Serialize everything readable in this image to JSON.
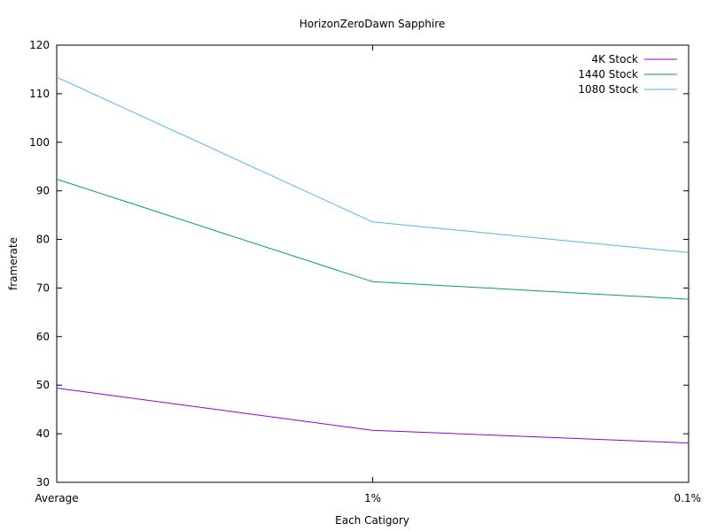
{
  "chart_data": {
    "type": "line",
    "title": "HorizonZeroDawn Sapphire",
    "xlabel": "Each Catigory",
    "ylabel": "framerate",
    "categories": [
      "Average",
      "1%",
      "0.1%"
    ],
    "ylim": [
      30,
      120
    ],
    "yticks": [
      "30",
      "40",
      "50",
      "60",
      "70",
      "80",
      "90",
      "100",
      "110",
      "120"
    ],
    "grid": false,
    "legend_position": "top-right",
    "series": [
      {
        "name": "4K Stock",
        "color": "#9400d3",
        "values": [
          49.4,
          40.7,
          38.1
        ]
      },
      {
        "name": "1440 Stock",
        "color": "#009e73",
        "values": [
          92.4,
          71.3,
          67.7
        ]
      },
      {
        "name": "1080 Stock",
        "color": "#56b4e9",
        "values": [
          113.4,
          83.6,
          77.3
        ]
      }
    ]
  }
}
